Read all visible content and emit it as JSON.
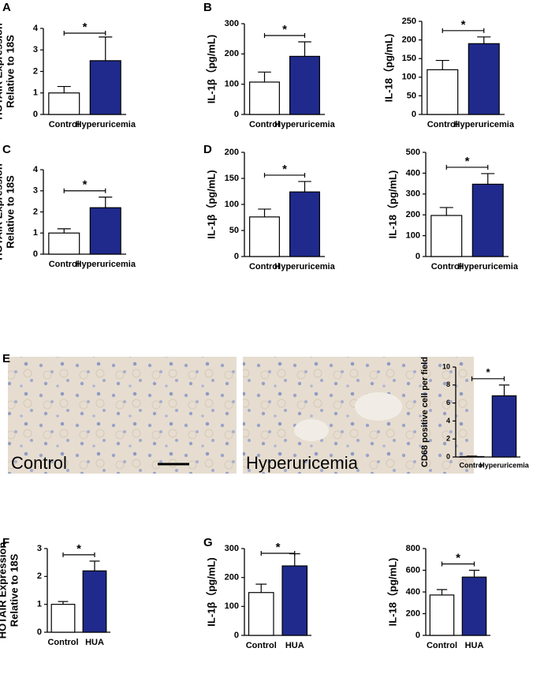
{
  "panel_labels": [
    "A",
    "B",
    "C",
    "D",
    "E",
    "F",
    "G"
  ],
  "images": [
    {
      "label": "Control"
    },
    {
      "label": "Hyperuricemia"
    }
  ],
  "chart_data": [
    {
      "type": "bar",
      "ylabel": [
        "HOTAIR Expression",
        "Relative to 18S"
      ],
      "categories": [
        "Control",
        "Hyperuricemia"
      ],
      "values": [
        1.0,
        2.5
      ],
      "errors": [
        0.3,
        1.1
      ],
      "colors": [
        "#ffffff",
        "#1f2a8c"
      ],
      "ylim": [
        0,
        4
      ],
      "yticks": [
        0,
        1,
        2,
        3,
        4
      ],
      "significance": "*"
    },
    {
      "type": "bar",
      "ylabel": "IL-1β（pg/mL)",
      "categories": [
        "Control",
        "Hyperuricemia"
      ],
      "values": [
        107,
        192
      ],
      "errors": [
        33,
        48
      ],
      "colors": [
        "#ffffff",
        "#1f2a8c"
      ],
      "ylim": [
        0,
        300
      ],
      "yticks": [
        0,
        100,
        200,
        300
      ],
      "significance": "*"
    },
    {
      "type": "bar",
      "ylabel": "IL-18（pg/mL)",
      "categories": [
        "Control",
        "Hyperuricemia"
      ],
      "values": [
        120,
        190
      ],
      "errors": [
        25,
        18
      ],
      "colors": [
        "#ffffff",
        "#1f2a8c"
      ],
      "ylim": [
        0,
        250
      ],
      "yticks": [
        0,
        50,
        100,
        150,
        200,
        250
      ],
      "significance": "*"
    },
    {
      "type": "bar",
      "ylabel": [
        "HOTAIR Expression",
        "Relative to 18S"
      ],
      "categories": [
        "Control",
        "Hyperuricemia"
      ],
      "values": [
        1.0,
        2.2
      ],
      "errors": [
        0.2,
        0.5
      ],
      "colors": [
        "#ffffff",
        "#1f2a8c"
      ],
      "ylim": [
        0,
        4
      ],
      "yticks": [
        0,
        1,
        2,
        3,
        4
      ],
      "significance": "*"
    },
    {
      "type": "bar",
      "ylabel": "IL-1β（pg/mL)",
      "categories": [
        "Control",
        "Hyperuricemia"
      ],
      "values": [
        76,
        124
      ],
      "errors": [
        15,
        20
      ],
      "colors": [
        "#ffffff",
        "#1f2a8c"
      ],
      "ylim": [
        0,
        200
      ],
      "yticks": [
        0,
        50,
        100,
        150,
        200
      ],
      "significance": "*"
    },
    {
      "type": "bar",
      "ylabel": "IL-18（pg/mL)",
      "categories": [
        "Control",
        "Hyperuricemia"
      ],
      "values": [
        197,
        347
      ],
      "errors": [
        38,
        51
      ],
      "colors": [
        "#ffffff",
        "#1f2a8c"
      ],
      "ylim": [
        0,
        500
      ],
      "yticks": [
        0,
        100,
        200,
        300,
        400,
        500
      ],
      "significance": "*"
    },
    {
      "type": "bar",
      "ylabel": "CD68 positive cell per field",
      "categories": [
        "Control",
        "Hyperuricemia"
      ],
      "values": [
        0.05,
        6.8
      ],
      "errors": [
        0.05,
        1.2
      ],
      "colors": [
        "#ffffff",
        "#1f2a8c"
      ],
      "ylim": [
        0,
        10
      ],
      "yticks": [
        0,
        2,
        4,
        6,
        8,
        10
      ],
      "significance": "*"
    },
    {
      "type": "bar",
      "ylabel": [
        "HOTAIR Expression",
        "Relative to 18S"
      ],
      "categories": [
        "Control",
        "HUA"
      ],
      "values": [
        1.0,
        2.2
      ],
      "errors": [
        0.1,
        0.35
      ],
      "colors": [
        "#ffffff",
        "#1f2a8c"
      ],
      "ylim": [
        0,
        3
      ],
      "yticks": [
        0,
        1,
        2,
        3
      ],
      "significance": "*"
    },
    {
      "type": "bar",
      "ylabel": "IL-1β（pg/mL)",
      "categories": [
        "Control",
        "HUA"
      ],
      "values": [
        148,
        240
      ],
      "errors": [
        29,
        42
      ],
      "colors": [
        "#ffffff",
        "#1f2a8c"
      ],
      "ylim": [
        0,
        300
      ],
      "yticks": [
        0,
        100,
        200,
        300
      ],
      "significance": "*"
    },
    {
      "type": "bar",
      "ylabel": "IL-18（pg/mL)",
      "categories": [
        "Control",
        "HUA"
      ],
      "values": [
        372,
        537
      ],
      "errors": [
        50,
        63
      ],
      "colors": [
        "#ffffff",
        "#1f2a8c"
      ],
      "ylim": [
        0,
        800
      ],
      "yticks": [
        0,
        200,
        400,
        600,
        800
      ],
      "significance": "*"
    }
  ]
}
